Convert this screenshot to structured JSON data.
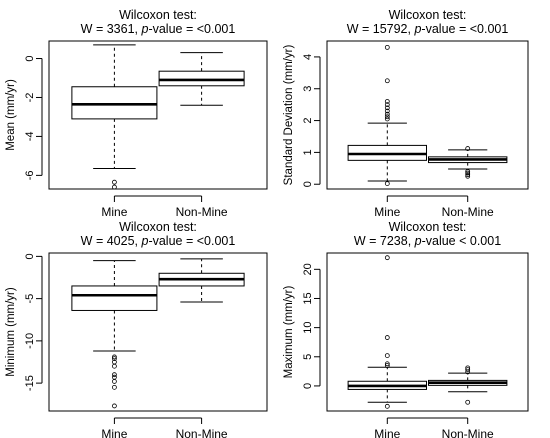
{
  "chart_data": [
    {
      "type": "boxplot",
      "title": "Wilcoxon test:",
      "stat_prefix": "W = ",
      "stat": "3361",
      "pvalue_label": "p",
      "pvalue_suffix": "-value = <0.001",
      "ylabel": "Mean (mm/yr)",
      "ylim": [
        -6.7,
        0.9
      ],
      "yticks": [
        0,
        -2,
        -4,
        -6
      ],
      "ytick_labels": [
        "0",
        "-2",
        "-4",
        "-6"
      ],
      "categories": [
        "Mine",
        "Non-Mine"
      ],
      "boxes": [
        {
          "name": "Mine",
          "whisker_low": -5.65,
          "q1": -3.1,
          "median": -2.35,
          "q3": -1.45,
          "whisker_high": 0.7,
          "outliers": [
            -6.35,
            -6.6
          ]
        },
        {
          "name": "Non-Mine",
          "whisker_low": -2.4,
          "q1": -1.4,
          "median": -1.1,
          "q3": -0.65,
          "whisker_high": 0.3,
          "outliers": []
        }
      ]
    },
    {
      "type": "boxplot",
      "title": "Wilcoxon test:",
      "stat_prefix": "W = ",
      "stat": "15792",
      "pvalue_label": "p",
      "pvalue_suffix": "-value = <0.001",
      "ylabel": "Standard Deviation (mm/yr)",
      "ylim": [
        -0.15,
        4.5
      ],
      "yticks": [
        0,
        1,
        2,
        3,
        4
      ],
      "ytick_labels": [
        "0",
        "1",
        "2",
        "3",
        "4"
      ],
      "categories": [
        "Mine",
        "Non-Mine"
      ],
      "boxes": [
        {
          "name": "Mine",
          "whisker_low": 0.1,
          "q1": 0.75,
          "median": 0.95,
          "q3": 1.22,
          "whisker_high": 1.92,
          "outliers": [
            0.02,
            2.05,
            2.12,
            2.2,
            2.3,
            2.4,
            2.5,
            2.6,
            3.25,
            4.3
          ]
        },
        {
          "name": "Non-Mine",
          "whisker_low": 0.48,
          "q1": 0.68,
          "median": 0.78,
          "q3": 0.86,
          "whisker_high": 1.08,
          "outliers": [
            0.25,
            0.3,
            0.35,
            0.4,
            1.12
          ]
        }
      ]
    },
    {
      "type": "boxplot",
      "title": "Wilcoxon test:",
      "stat_prefix": "W = ",
      "stat": "4025",
      "pvalue_label": "p",
      "pvalue_suffix": "-value = <0.001",
      "ylabel": "Minimum (mm/yr)",
      "ylim": [
        -18.3,
        0.4
      ],
      "yticks": [
        0,
        -5,
        -10,
        -15
      ],
      "ytick_labels": [
        "0",
        "-5",
        "-10",
        "-15"
      ],
      "categories": [
        "Mine",
        "Non-Mine"
      ],
      "boxes": [
        {
          "name": "Mine",
          "whisker_low": -11.2,
          "q1": -6.4,
          "median": -4.6,
          "q3": -3.5,
          "whisker_high": -0.5,
          "outliers": [
            -11.9,
            -12.1,
            -12.5,
            -13.0,
            -14.0,
            -14.3,
            -14.8,
            -15.5,
            -17.7
          ]
        },
        {
          "name": "Non-Mine",
          "whisker_low": -5.4,
          "q1": -3.5,
          "median": -2.7,
          "q3": -2.0,
          "whisker_high": -0.3,
          "outliers": []
        }
      ]
    },
    {
      "type": "boxplot",
      "title": "Wilcoxon test:",
      "stat_prefix": "W = ",
      "stat": "7238",
      "pvalue_label": "p",
      "pvalue_suffix": "-value < 0.001",
      "ylabel": "Maximum (mm/yr)",
      "ylim": [
        -4.3,
        22.8
      ],
      "yticks": [
        0,
        5,
        10,
        15,
        20
      ],
      "ytick_labels": [
        "0",
        "5",
        "10",
        "15",
        "20"
      ],
      "categories": [
        "Mine",
        "Non-Mine"
      ],
      "boxes": [
        {
          "name": "Mine",
          "whisker_low": -2.8,
          "q1": -0.6,
          "median": 0.0,
          "q3": 0.8,
          "whisker_high": 3.2,
          "outliers": [
            -3.5,
            3.5,
            3.8,
            5.2,
            8.3,
            22.0
          ]
        },
        {
          "name": "Non-Mine",
          "whisker_low": -1.0,
          "q1": 0.1,
          "median": 0.55,
          "q3": 0.95,
          "whisker_high": 2.2,
          "outliers": [
            -2.8,
            2.4,
            2.8,
            3.1
          ]
        }
      ]
    }
  ]
}
